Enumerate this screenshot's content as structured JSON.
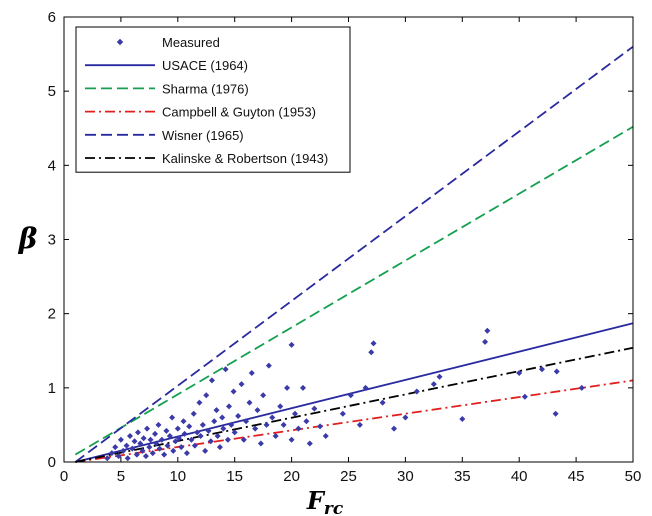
{
  "chart_data": {
    "type": "scatter",
    "title": "",
    "xlabel": "F",
    "xlabel_sub": "rc",
    "ylabel": "β",
    "xlim": [
      0,
      50
    ],
    "ylim": [
      0,
      6
    ],
    "xticks": [
      0,
      5,
      10,
      15,
      20,
      25,
      30,
      35,
      40,
      45,
      50
    ],
    "yticks": [
      0,
      1,
      2,
      3,
      4,
      5,
      6
    ],
    "grid": false,
    "legend_position": "top-left",
    "series": [
      {
        "name": "Measured",
        "kind": "scatter",
        "marker": "diamond",
        "color": "#3a3aa8",
        "points": [
          [
            3.8,
            0.05
          ],
          [
            4.2,
            0.12
          ],
          [
            4.5,
            0.2
          ],
          [
            4.8,
            0.08
          ],
          [
            5.0,
            0.3
          ],
          [
            5.2,
            0.15
          ],
          [
            5.5,
            0.22
          ],
          [
            5.6,
            0.05
          ],
          [
            5.8,
            0.35
          ],
          [
            6.0,
            0.18
          ],
          [
            6.2,
            0.28
          ],
          [
            6.4,
            0.1
          ],
          [
            6.5,
            0.4
          ],
          [
            6.7,
            0.25
          ],
          [
            6.9,
            0.15
          ],
          [
            7.0,
            0.32
          ],
          [
            7.2,
            0.08
          ],
          [
            7.3,
            0.45
          ],
          [
            7.5,
            0.2
          ],
          [
            7.6,
            0.3
          ],
          [
            7.8,
            0.12
          ],
          [
            8.0,
            0.38
          ],
          [
            8.1,
            0.25
          ],
          [
            8.3,
            0.5
          ],
          [
            8.4,
            0.18
          ],
          [
            8.6,
            0.3
          ],
          [
            8.8,
            0.1
          ],
          [
            9.0,
            0.42
          ],
          [
            9.1,
            0.22
          ],
          [
            9.3,
            0.35
          ],
          [
            9.5,
            0.6
          ],
          [
            9.6,
            0.15
          ],
          [
            9.8,
            0.28
          ],
          [
            10.0,
            0.45
          ],
          [
            10.1,
            0.32
          ],
          [
            10.3,
            0.2
          ],
          [
            10.5,
            0.55
          ],
          [
            10.6,
            0.38
          ],
          [
            10.8,
            0.12
          ],
          [
            11.0,
            0.48
          ],
          [
            11.2,
            0.3
          ],
          [
            11.4,
            0.65
          ],
          [
            11.5,
            0.22
          ],
          [
            11.7,
            0.4
          ],
          [
            11.9,
            0.8
          ],
          [
            12.0,
            0.35
          ],
          [
            12.2,
            0.5
          ],
          [
            12.4,
            0.15
          ],
          [
            12.5,
            0.9
          ],
          [
            12.7,
            0.42
          ],
          [
            12.9,
            0.28
          ],
          [
            13.0,
            1.1
          ],
          [
            13.2,
            0.55
          ],
          [
            13.4,
            0.7
          ],
          [
            13.5,
            0.35
          ],
          [
            13.7,
            0.2
          ],
          [
            13.9,
            0.6
          ],
          [
            14.0,
            0.45
          ],
          [
            14.2,
            1.25
          ],
          [
            14.4,
            0.3
          ],
          [
            14.5,
            0.75
          ],
          [
            14.7,
            0.5
          ],
          [
            14.9,
            0.95
          ],
          [
            15.0,
            0.4
          ],
          [
            15.3,
            0.62
          ],
          [
            15.6,
            1.05
          ],
          [
            15.8,
            0.3
          ],
          [
            16.0,
            0.55
          ],
          [
            16.3,
            0.8
          ],
          [
            16.5,
            1.2
          ],
          [
            16.8,
            0.45
          ],
          [
            17.0,
            0.7
          ],
          [
            17.3,
            0.25
          ],
          [
            17.5,
            0.9
          ],
          [
            17.8,
            0.5
          ],
          [
            18.0,
            1.3
          ],
          [
            18.3,
            0.6
          ],
          [
            18.6,
            0.35
          ],
          [
            19.0,
            0.75
          ],
          [
            19.3,
            0.5
          ],
          [
            19.6,
            1.0
          ],
          [
            20.0,
            0.3
          ],
          [
            20.0,
            1.58
          ],
          [
            20.3,
            0.65
          ],
          [
            20.6,
            0.45
          ],
          [
            21.0,
            1.0
          ],
          [
            21.3,
            0.55
          ],
          [
            21.6,
            0.25
          ],
          [
            22.0,
            0.72
          ],
          [
            22.5,
            0.48
          ],
          [
            23.0,
            0.35
          ],
          [
            24.5,
            0.65
          ],
          [
            25.2,
            0.9
          ],
          [
            26.0,
            0.5
          ],
          [
            26.5,
            1.0
          ],
          [
            27.0,
            1.48
          ],
          [
            27.2,
            1.6
          ],
          [
            28.0,
            0.8
          ],
          [
            29.0,
            0.45
          ],
          [
            30.0,
            0.6
          ],
          [
            31.0,
            0.95
          ],
          [
            32.5,
            1.05
          ],
          [
            33.0,
            1.15
          ],
          [
            35.0,
            0.58
          ],
          [
            37.0,
            1.62
          ],
          [
            37.2,
            1.77
          ],
          [
            40.0,
            1.2
          ],
          [
            40.5,
            0.88
          ],
          [
            42.0,
            1.25
          ],
          [
            43.2,
            0.65
          ],
          [
            43.3,
            1.22
          ],
          [
            45.5,
            1.0
          ]
        ]
      },
      {
        "name": "USACE (1964)",
        "kind": "line",
        "dash": "solid",
        "color": "#2a2aa0",
        "x": [
          1,
          50
        ],
        "y": [
          0,
          1.87
        ]
      },
      {
        "name": "Sharma (1976)",
        "kind": "line",
        "dash": "dashed",
        "color": "#14a050",
        "x": [
          1,
          50
        ],
        "y": [
          0.1,
          4.52
        ]
      },
      {
        "name": "Campbell & Guyton (1953)",
        "kind": "line",
        "dash": "dashdot",
        "color": "#e0201e",
        "x": [
          1,
          50
        ],
        "y": [
          0.0,
          1.1
        ]
      },
      {
        "name": "Wisner (1965)",
        "kind": "line",
        "dash": "dashed",
        "color": "#2a2aa0",
        "x": [
          1,
          50
        ],
        "y": [
          0.0,
          5.6
        ]
      },
      {
        "name": "Kalinske & Robertson (1943)",
        "kind": "line",
        "dash": "dashdot",
        "color": "#000000",
        "x": [
          1,
          50
        ],
        "y": [
          0.0,
          1.54
        ]
      }
    ]
  }
}
